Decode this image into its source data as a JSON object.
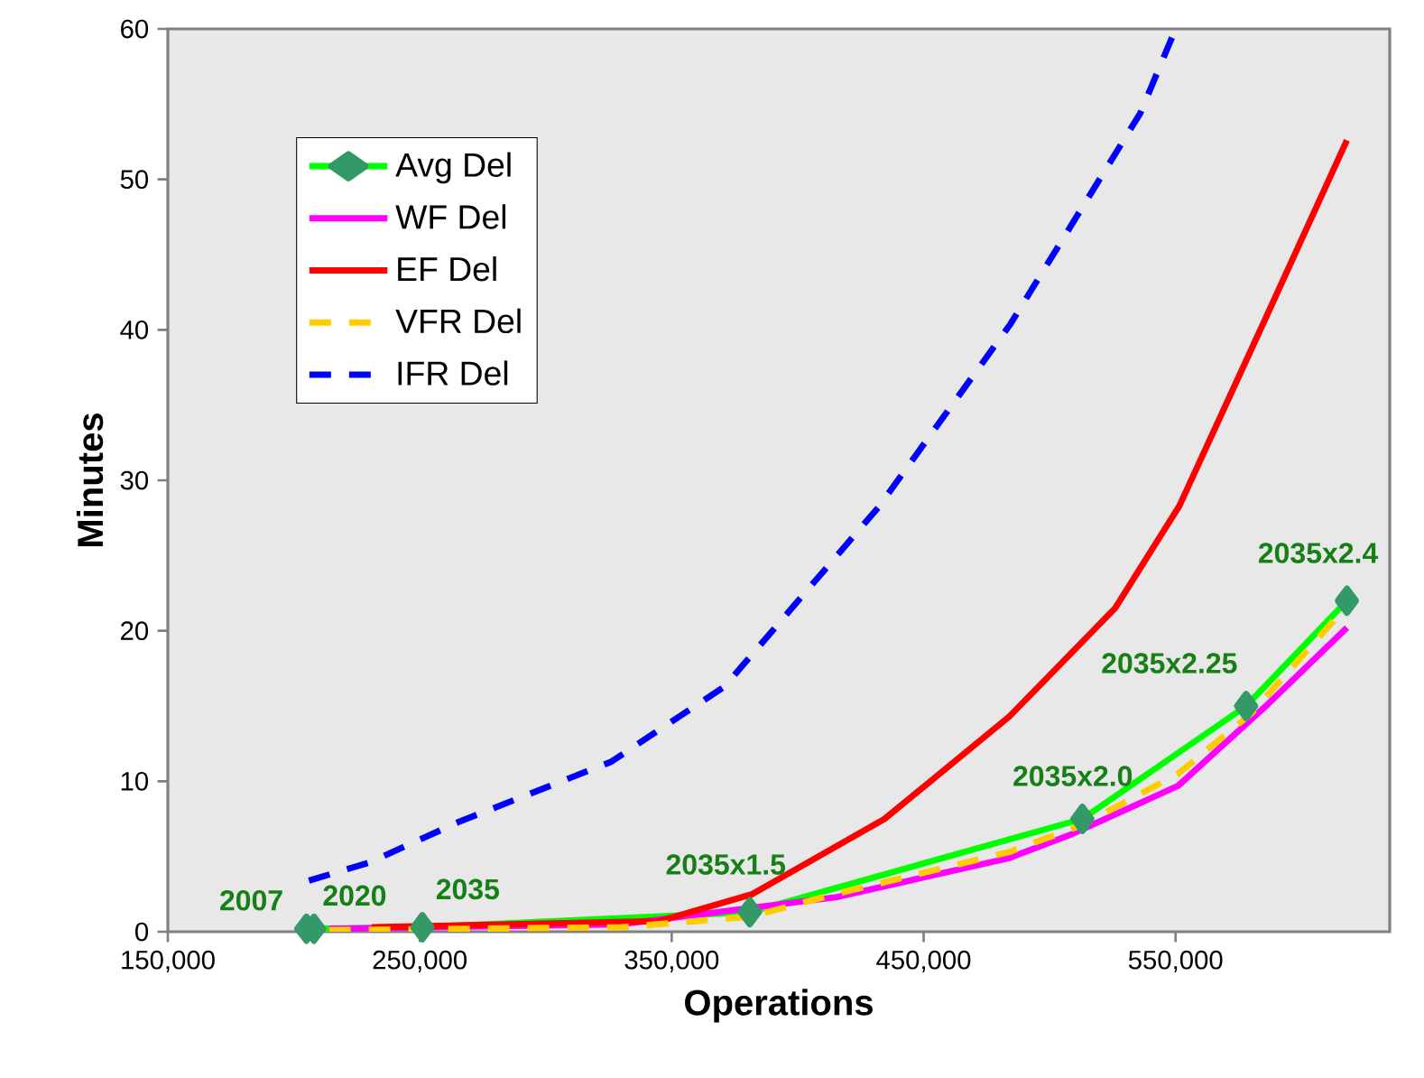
{
  "chart_data": {
    "type": "line",
    "xlabel": "Operations",
    "ylabel": "Minutes",
    "xlim": [
      150000,
      635000
    ],
    "ylim": [
      0,
      60
    ],
    "xticks": [
      {
        "value": 150000,
        "label": "150,000"
      },
      {
        "value": 250000,
        "label": "250,000"
      },
      {
        "value": 350000,
        "label": "350,000"
      },
      {
        "value": 450000,
        "label": "450,000"
      },
      {
        "value": 550000,
        "label": "550,000"
      }
    ],
    "yticks": [
      0,
      10,
      20,
      30,
      40,
      50,
      60
    ],
    "grid": false,
    "legend": "top left",
    "line_style": "solid",
    "marker": "none",
    "series": [
      {
        "name": "Avg Del",
        "color": "#00ff00",
        "marker": "diamond",
        "x": [
          205000,
          208000,
          251000,
          381000,
          513000,
          578000,
          618000
        ],
        "values": [
          0.2,
          0.2,
          0.3,
          1.3,
          7.5,
          15.0,
          22.0
        ]
      },
      {
        "name": "WF Del",
        "color": "#ff00ff",
        "x": [
          214000,
          330000,
          415500,
          484000,
          509000,
          551000,
          586500,
          618000
        ],
        "values": [
          0.2,
          0.5,
          2.3,
          4.9,
          6.5,
          9.7,
          15.1,
          20.2
        ]
      },
      {
        "name": "EF Del",
        "color": "#ff0000",
        "x": [
          231000,
          345000,
          382000,
          434500,
          484000,
          512000,
          526000,
          551500,
          585000,
          618000
        ],
        "values": [
          0.3,
          0.7,
          2.5,
          7.5,
          14.3,
          19.1,
          21.5,
          28.3,
          40.5,
          52.6
        ]
      },
      {
        "name": "VFR Del",
        "color": "#ffcc00",
        "line_style": "dashed",
        "x": [
          214000,
          330000,
          381000,
          415000,
          484000,
          513000,
          551000,
          580000,
          615000
        ],
        "values": [
          0.1,
          0.3,
          1.0,
          2.5,
          5.3,
          7.1,
          10.5,
          14.5,
          21.1
        ]
      },
      {
        "name": "IFR Del",
        "color": "#0000ff",
        "line_style": "dashed",
        "x": [
          206000,
          230000,
          265500,
          326000,
          371000,
          432000,
          484500,
          511000,
          536000,
          550000
        ],
        "values": [
          3.4,
          4.6,
          7.3,
          11.3,
          16.3,
          28.2,
          40.4,
          47.6,
          54.4,
          60
        ]
      }
    ],
    "annotations": [
      {
        "text": "2007",
        "x": 205000,
        "y": 0.2
      },
      {
        "text": "2020",
        "x": 208000,
        "y": 0.2
      },
      {
        "text": "2035",
        "x": 251000,
        "y": 0.3
      },
      {
        "text": "2035x1.5",
        "x": 381000,
        "y": 1.3
      },
      {
        "text": "2035x2.0",
        "x": 513000,
        "y": 7.5
      },
      {
        "text": "2035x2.25",
        "x": 578000,
        "y": 15.0
      },
      {
        "text": "2035x2.4",
        "x": 618000,
        "y": 22.0
      }
    ]
  }
}
